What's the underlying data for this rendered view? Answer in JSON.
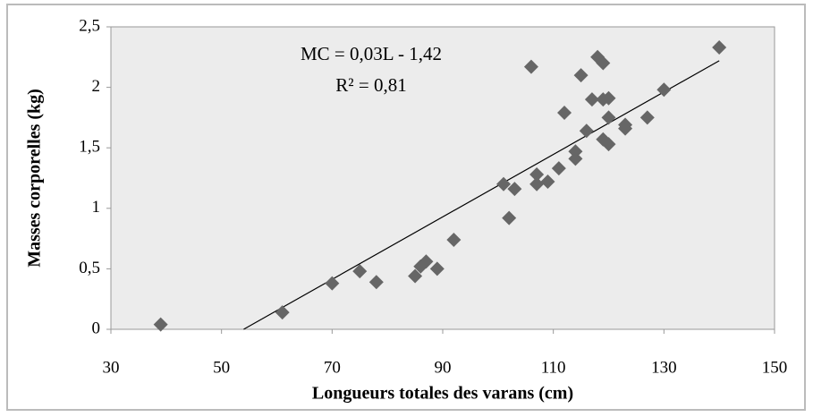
{
  "chart_data": {
    "type": "scatter",
    "xlabel": "Longueurs totales des varans (cm)",
    "ylabel": "Masses corporelles (kg)",
    "annotations": [
      "MC = 0,03L - 1,42",
      "R² = 0,81"
    ],
    "color": "#666666",
    "x": [
      39,
      61,
      70,
      75,
      78,
      85,
      86,
      87,
      89,
      92,
      101,
      102,
      103,
      106,
      107,
      107,
      109,
      111,
      112,
      114,
      114,
      115,
      116,
      117,
      118,
      119,
      119,
      119,
      120,
      120,
      120,
      123,
      123,
      127,
      130,
      140
    ],
    "values": [
      0.04,
      0.14,
      0.38,
      0.48,
      0.39,
      0.44,
      0.52,
      0.56,
      0.5,
      0.74,
      1.2,
      0.92,
      1.16,
      2.17,
      1.2,
      1.28,
      1.22,
      1.33,
      1.79,
      1.41,
      1.47,
      2.1,
      1.64,
      1.9,
      2.25,
      2.2,
      1.57,
      1.9,
      1.53,
      1.75,
      1.91,
      1.66,
      1.69,
      1.75,
      1.98,
      2.33
    ],
    "trendline": {
      "x": [
        54,
        140
      ],
      "y": [
        0,
        2.22
      ]
    },
    "xlim": [
      30,
      150
    ],
    "xticks": [
      30,
      50,
      70,
      90,
      110,
      130,
      150
    ],
    "ylim": [
      0,
      2.5
    ],
    "yticks": [
      0,
      {
        "value": 0.5,
        "label": "0,5"
      },
      1,
      {
        "value": 1.5,
        "label": "1,5"
      },
      2,
      {
        "value": 2.5,
        "label": "2,5"
      }
    ]
  }
}
